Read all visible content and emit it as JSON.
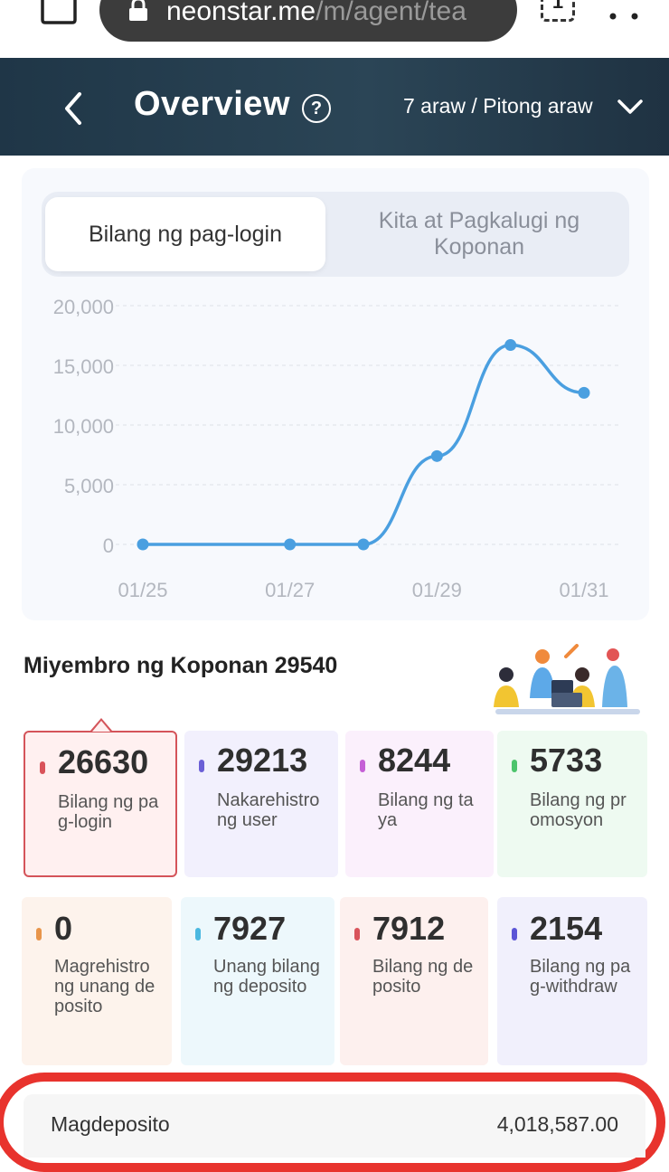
{
  "browser": {
    "url_host": "neonstar.me",
    "url_path": "/m/agent/tea",
    "tab_count": "1"
  },
  "header": {
    "title": "Overview",
    "help": "?",
    "period": "7 araw / Pitong araw"
  },
  "chart_tabs": [
    {
      "label": "Bilang ng pag-login",
      "active": true
    },
    {
      "label": "Kita at Pagkalugi ng Koponan",
      "active": false
    }
  ],
  "chart_data": {
    "type": "line",
    "x": [
      "01/25",
      "01/26",
      "01/27",
      "01/28",
      "01/29",
      "01/30",
      "01/31"
    ],
    "x_tick_labels": [
      "01/25",
      "01/27",
      "01/29",
      "01/31"
    ],
    "y_tick_labels": [
      "20,000",
      "15,000",
      "10,000",
      "5,000",
      "0"
    ],
    "series": [
      {
        "values": [
          0,
          null,
          0,
          0,
          7400,
          16700,
          12700
        ],
        "color": "#4a9fe0"
      }
    ],
    "ylim": [
      0,
      20000
    ],
    "grid": true,
    "smooth": true
  },
  "members": {
    "title": "Miyembro ng Koponan 29540"
  },
  "stats": [
    {
      "value": "26630",
      "label": "Bilang ng pag-login",
      "dot_color": "#d9535a",
      "bg": "#fff0f0",
      "active": true
    },
    {
      "value": "29213",
      "label": "Nakarehistrong user",
      "dot_color": "#6b5fd6",
      "bg": "#f2f0fd"
    },
    {
      "value": "8244",
      "label": "Bilang ng taya",
      "dot_color": "#c55fd6",
      "bg": "#fbf0fc"
    },
    {
      "value": "5733",
      "label": "Bilang ng promosyon",
      "dot_color": "#4cc46c",
      "bg": "#eefaf1"
    },
    {
      "value": "0",
      "label": "Magrehistro ng unang deposito",
      "dot_color": "#e8954a",
      "bg": "#fdf3ec"
    },
    {
      "value": "7927",
      "label": "Unang bilang ng deposito",
      "dot_color": "#4ab8e0",
      "bg": "#edf8fc"
    },
    {
      "value": "7912",
      "label": "Bilang ng deposito",
      "dot_color": "#d9535a",
      "bg": "#fdf0ee"
    },
    {
      "value": "2154",
      "label": "Bilang ng pag-withdraw",
      "dot_color": "#5b55d6",
      "bg": "#f1f0fc"
    }
  ],
  "deposit": {
    "label": "Magdeposito",
    "value": "4,018,587.00"
  }
}
